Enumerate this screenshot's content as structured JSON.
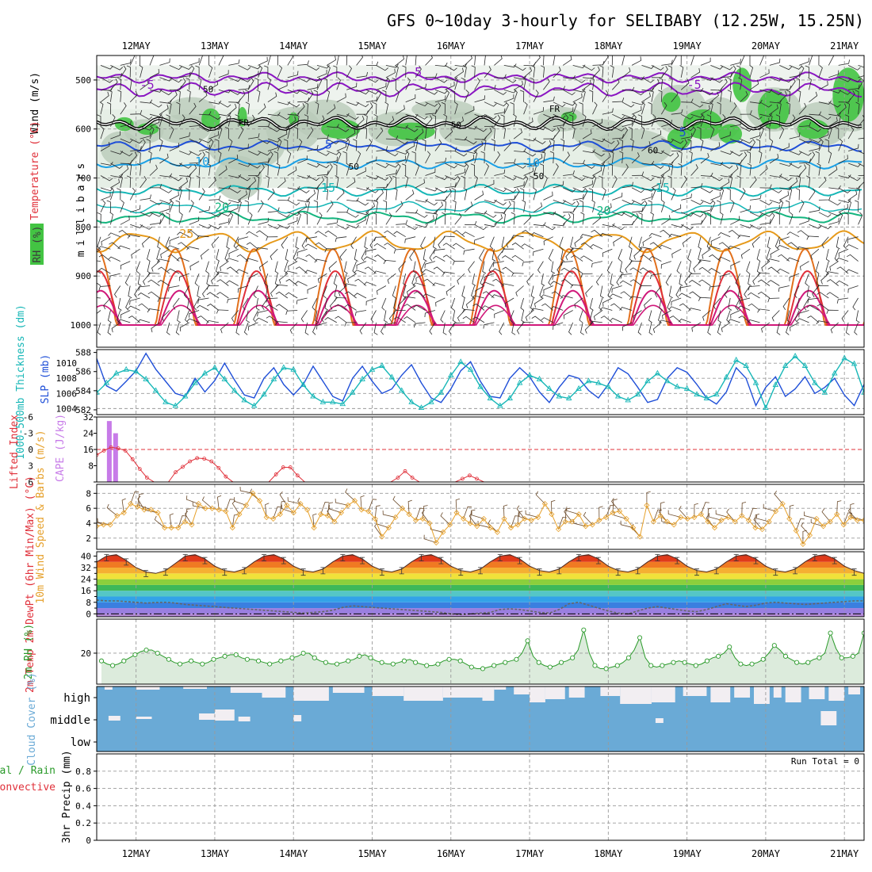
{
  "title": "GFS 0~10day 3-hourly for SELIBABY (12.25W, 15.25N)",
  "colors": {
    "purple": "#8a16c2",
    "blue": "#1f4fd8",
    "lightblue": "#1aa0e6",
    "teal": "#17b7b7",
    "green": "#15b57f",
    "orange": "#e69a1b",
    "darkorange": "#e2701c",
    "red": "#e0303a",
    "magenta": "#d0187a",
    "rhgreen": "#43c443",
    "cape": "#c77be8",
    "li": "#e0303a",
    "wind": "#e6a02a",
    "cloud": "#6aaad6",
    "rh2m": "#2a9a2a"
  },
  "chart_data": [
    {
      "type": "contour",
      "name": "upper-air",
      "ylabel": "millibars",
      "y_ticks": [
        500,
        600,
        700,
        800,
        900,
        1000
      ],
      "ylim": [
        450,
        1000
      ],
      "legend_labels": [
        "Wind (m/s)",
        "Temperature (°C)",
        "RH (%)"
      ],
      "isotherm_labels": [
        {
          "value": "-5",
          "day": 12.05,
          "p": 518
        },
        {
          "value": "-5",
          "day": 15.45,
          "p": 492
        },
        {
          "value": "-5",
          "day": 19.0,
          "p": 518
        },
        {
          "value": "FR",
          "day": 13.3,
          "p": 593
        },
        {
          "value": "FR",
          "day": 17.25,
          "p": 565
        },
        {
          "value": "5",
          "day": 14.4,
          "p": 640
        },
        {
          "value": "5",
          "day": 18.9,
          "p": 615
        },
        {
          "value": "10",
          "day": 12.75,
          "p": 675
        },
        {
          "value": "10",
          "day": 16.95,
          "p": 677
        },
        {
          "value": "15",
          "day": 14.35,
          "p": 728
        },
        {
          "value": "15",
          "day": 18.6,
          "p": 728
        },
        {
          "value": "20",
          "day": 13.0,
          "p": 768
        },
        {
          "value": "20",
          "day": 17.85,
          "p": 775
        },
        {
          "value": "25",
          "day": 12.55,
          "p": 822
        }
      ],
      "rh_labels": [
        {
          "value": "50",
          "day": 12.85,
          "p": 525
        },
        {
          "value": "50",
          "day": 14.7,
          "p": 683
        },
        {
          "value": "50",
          "day": 16.0,
          "p": 598
        },
        {
          "value": "50",
          "day": 17.05,
          "p": 702
        },
        {
          "value": "60",
          "day": 18.5,
          "p": 650
        }
      ]
    },
    {
      "type": "line",
      "name": "thickness-slp",
      "ylabel_left": "1000-500mb Thickness (dm)",
      "ylabel_right": "SLP (mb)",
      "left_ticks": [
        582,
        584,
        586,
        588
      ],
      "right_ticks": [
        1004,
        1006,
        1008,
        1010
      ],
      "left_range": [
        581.5,
        588.3
      ],
      "right_range": [
        1003.2,
        1011.8
      ],
      "series": [
        {
          "name": "SLP (mb)",
          "axis": "right",
          "values": [
            1010.6,
            1007.0,
            1006.3,
            1007.6,
            1009.0,
            1011.3,
            1009.2,
            1007.6,
            1006.0,
            1005.6,
            1008.0,
            1006.2,
            1007.7,
            1010.0,
            1007.8,
            1005.8,
            1005.4,
            1008.0,
            1009.4,
            1007.2,
            1005.8,
            1007.2,
            1009.6,
            1007.6,
            1005.6,
            1005.0,
            1008.0,
            1009.6,
            1007.6,
            1006.0,
            1006.6,
            1008.4,
            1009.8,
            1007.4,
            1005.4,
            1004.8,
            1006.6,
            1009.0,
            1010.2,
            1007.6,
            1005.6,
            1005.4,
            1008.0,
            1009.4,
            1008.2,
            1006.2,
            1004.8,
            1006.8,
            1008.4,
            1008.0,
            1006.4,
            1005.4,
            1007.2,
            1009.4,
            1008.6,
            1006.8,
            1004.8,
            1005.2,
            1008.0,
            1009.4,
            1008.8,
            1007.2,
            1005.4,
            1004.6,
            1006.2,
            1009.4,
            1008.0,
            1004.4,
            1006.8,
            1008.2,
            1005.6,
            1006.6,
            1008.2,
            1006.0,
            1006.8,
            1008.0,
            1005.8,
            1004.4,
            1007.2
          ]
        },
        {
          "name": "Thickness (dm)",
          "axis": "left",
          "values": [
            583.8,
            584.8,
            585.8,
            586.2,
            586.0,
            585.2,
            584.0,
            582.8,
            582.4,
            583.4,
            584.8,
            585.8,
            586.4,
            585.2,
            584.0,
            583.0,
            582.4,
            583.6,
            585.2,
            586.4,
            586.2,
            584.6,
            583.4,
            582.8,
            582.8,
            582.6,
            583.8,
            585.2,
            586.2,
            586.6,
            585.4,
            584.0,
            582.8,
            582.2,
            582.8,
            583.8,
            585.6,
            587.0,
            586.2,
            584.4,
            583.2,
            582.4,
            583.2,
            584.8,
            585.6,
            585.2,
            584.2,
            583.4,
            583.2,
            584.2,
            585.0,
            584.8,
            584.4,
            583.4,
            583.0,
            583.6,
            585.0,
            585.8,
            585.0,
            584.4,
            584.2,
            583.6,
            583.2,
            583.6,
            585.4,
            587.2,
            586.6,
            584.8,
            582.2,
            584.6,
            586.6,
            587.6,
            586.6,
            584.8,
            583.8,
            585.8,
            587.4,
            586.8,
            583.8
          ]
        }
      ]
    },
    {
      "type": "bar+line",
      "name": "cape-li",
      "ylabel_left": "Lifted Index",
      "ylabel_right": "CAPE (J/kg)",
      "li_ticks": [
        "-6",
        "-3",
        "0",
        "3",
        "6"
      ],
      "cape_ticks": [
        8,
        16,
        24,
        32
      ],
      "cape_range": [
        0,
        32
      ],
      "li_range": [
        -6,
        6
      ],
      "cape_bars": [
        {
          "day": 11.66,
          "value": 30
        },
        {
          "day": 11.74,
          "value": 24
        }
      ],
      "li_values": [
        1.0,
        0.2,
        -0.4,
        -0.2,
        0.2,
        1.8,
        3.6,
        5.2,
        6.0,
        6,
        6,
        4.2,
        3.2,
        2.2,
        1.6,
        1.7,
        2.2,
        3.4,
        5.0,
        6,
        6,
        6,
        6,
        6,
        6,
        4.6,
        3.3,
        3.3,
        4.8,
        6,
        6,
        6,
        6,
        6,
        6,
        6,
        6,
        6,
        6,
        6,
        6,
        6,
        5.2,
        4.0,
        5.2,
        6,
        6,
        6,
        6,
        6,
        6,
        5.4,
        4.8,
        5.4,
        6,
        6,
        6,
        6,
        6,
        6,
        6,
        6,
        6,
        6,
        6,
        6,
        6,
        6,
        6,
        6,
        6,
        6,
        6,
        6,
        6,
        6,
        6,
        6,
        6,
        6,
        6,
        6,
        6,
        6,
        6,
        6,
        6,
        6,
        6,
        6,
        6,
        6,
        6,
        6,
        6,
        6,
        6,
        6,
        6,
        6,
        6,
        6,
        6,
        6,
        6,
        6,
        6,
        6
      ]
    },
    {
      "type": "line",
      "name": "10m-wind",
      "ylabel": "10m Wind Speed & Barbs (m/s)",
      "ticks": [
        2,
        4,
        6,
        8
      ],
      "range": [
        0.5,
        9.2
      ],
      "values": [
        3.6,
        3.8,
        3.8,
        5.0,
        5.4,
        6.6,
        6.2,
        5.8,
        5.8,
        5.4,
        3.4,
        3.4,
        3.4,
        4.2,
        3.8,
        6.6,
        6.0,
        6.0,
        5.8,
        5.6,
        3.4,
        5.2,
        6.4,
        8.0,
        7.0,
        4.8,
        4.6,
        5.2,
        6.4,
        5.4,
        6.6,
        5.8,
        3.4,
        5.2,
        5.0,
        4.2,
        5.4,
        6.4,
        7.0,
        5.8,
        5.6,
        4.6,
        2.2,
        3.4,
        4.8,
        6.0,
        5.2,
        4.4,
        4.6,
        4.0,
        1.4,
        2.8,
        3.8,
        5.4,
        4.6,
        4.0,
        3.6,
        4.6,
        3.4,
        2.8,
        4.6,
        3.4,
        3.8,
        4.6,
        4.4,
        4.8,
        6.6,
        5.2,
        3.2,
        4.2,
        4.2,
        5.2,
        3.6,
        3.8,
        4.4,
        4.8,
        5.4,
        5.6,
        4.6,
        3.4,
        2.2,
        6.4,
        4.2,
        5.0,
        4.2,
        3.8,
        4.8,
        4.6,
        4.8,
        5.2,
        4.2,
        3.4,
        4.4,
        4.8,
        4.2,
        5.0,
        4.4,
        3.4,
        3.2,
        4.2,
        5.6,
        6.6,
        4.6,
        3.0,
        1.2,
        2.4,
        4.6,
        3.6,
        4.2,
        5.2,
        3.8,
        4.8,
        4.4,
        4.4
      ]
    },
    {
      "type": "area",
      "name": "2m-temp",
      "ylabel": "2m Temp 2m DewPt (6hr Min/Max) (°C)",
      "ticks": [
        0,
        8,
        16,
        24,
        32,
        40
      ],
      "minor_ticks": [
        4,
        12,
        20,
        28,
        36
      ],
      "range": [
        -2,
        43
      ],
      "temp": [
        36,
        40,
        41,
        37,
        32,
        29,
        28,
        30,
        35,
        40,
        41,
        38,
        33,
        30,
        29,
        31,
        36,
        40,
        41,
        38,
        33,
        30,
        29,
        31,
        36,
        40,
        41,
        38,
        33,
        30,
        29,
        31,
        36,
        40,
        41,
        38,
        33,
        30,
        29,
        31,
        36,
        40,
        41,
        38,
        33,
        30,
        29,
        31,
        36,
        40,
        41,
        38,
        33,
        30,
        29,
        31,
        36,
        40,
        41,
        38,
        33,
        30,
        29,
        31,
        36,
        40,
        41,
        38,
        33,
        30,
        29,
        31,
        36,
        40,
        41,
        38,
        33,
        30,
        28
      ],
      "dewpt": [
        9.5,
        9.0,
        9.0,
        8.5,
        8.0,
        7.5,
        7.8,
        8.0,
        7.5,
        6.5,
        6.0,
        5.5,
        5.0,
        4.5,
        4.0,
        3.5,
        3.0,
        2.5,
        2.0,
        1.5,
        1.0,
        0.5,
        1.0,
        1.5,
        2.5,
        4.5,
        5.5,
        5.0,
        4.5,
        4.0,
        3.5,
        3.0,
        2.5,
        2.0,
        1.5,
        1.0,
        0.0,
        -0.5,
        0.0,
        0.5,
        1.0,
        3.0,
        3.5,
        3.0,
        2.0,
        1.0,
        0.5,
        3.0,
        7.0,
        8.0,
        6.0,
        4.0,
        2.0,
        0.5,
        0.0,
        2.0,
        4.0,
        5.0,
        4.0,
        3.0,
        2.0,
        1.5,
        3.0,
        5.0,
        7.0,
        6.0,
        5.0,
        6.0,
        7.5,
        8.0,
        7.5,
        7.0,
        6.5,
        7.0,
        7.5,
        8.0,
        8.5,
        9.0,
        9.0
      ]
    },
    {
      "type": "area",
      "name": "2m-rh",
      "ylabel": "2m RH (%)",
      "ticks": [
        20
      ],
      "range": [
        0,
        42
      ],
      "values": [
        15,
        13,
        12,
        13,
        15,
        17,
        19,
        21,
        22,
        22,
        20,
        18,
        16,
        14,
        13,
        14,
        15,
        14,
        13,
        14,
        16,
        17,
        18,
        19,
        19,
        17,
        16,
        16,
        15,
        14,
        13,
        14,
        15,
        16,
        17,
        18,
        20,
        20,
        17,
        15,
        14,
        13,
        13,
        14,
        15,
        16,
        18,
        19,
        17,
        15,
        14,
        13,
        13,
        14,
        15,
        16,
        14,
        13,
        12,
        12,
        13,
        15,
        16,
        16,
        15,
        13,
        11,
        10,
        10,
        11,
        12,
        13,
        14,
        15,
        16,
        20,
        28,
        18,
        14,
        12,
        11,
        12,
        14,
        15,
        17,
        22,
        35,
        20,
        12,
        10,
        10,
        11,
        12,
        14,
        17,
        22,
        30,
        17,
        12,
        11,
        12,
        13,
        14,
        15,
        14,
        13,
        12,
        13,
        15,
        17,
        18,
        20,
        24,
        17,
        13,
        12,
        13,
        14,
        16,
        20,
        25,
        22,
        18,
        16,
        14,
        13,
        14,
        16,
        17,
        20,
        33,
        23,
        17,
        17,
        18,
        20,
        33
      ]
    },
    {
      "type": "bar",
      "name": "cloud-cover",
      "ylabel": "Cloud Cover (%)",
      "levels": [
        "high",
        "middle",
        "low"
      ]
    },
    {
      "type": "bar",
      "name": "precip",
      "ylabel": "3hr Precip (mm)",
      "legend": [
        "Total / Rain",
        "Convective"
      ],
      "ticks": [
        "0",
        "0.2",
        "0.4",
        "0.6",
        "0.8"
      ],
      "range": [
        0,
        1
      ],
      "run_total": "Run Total = 0",
      "values": []
    }
  ],
  "x_axis": {
    "labels": [
      "12MAY",
      "13MAY",
      "14MAY",
      "15MAY",
      "16MAY",
      "17MAY",
      "18MAY",
      "19MAY",
      "20MAY",
      "21MAY"
    ],
    "start_day": 11.5,
    "end_day": 21.25
  }
}
